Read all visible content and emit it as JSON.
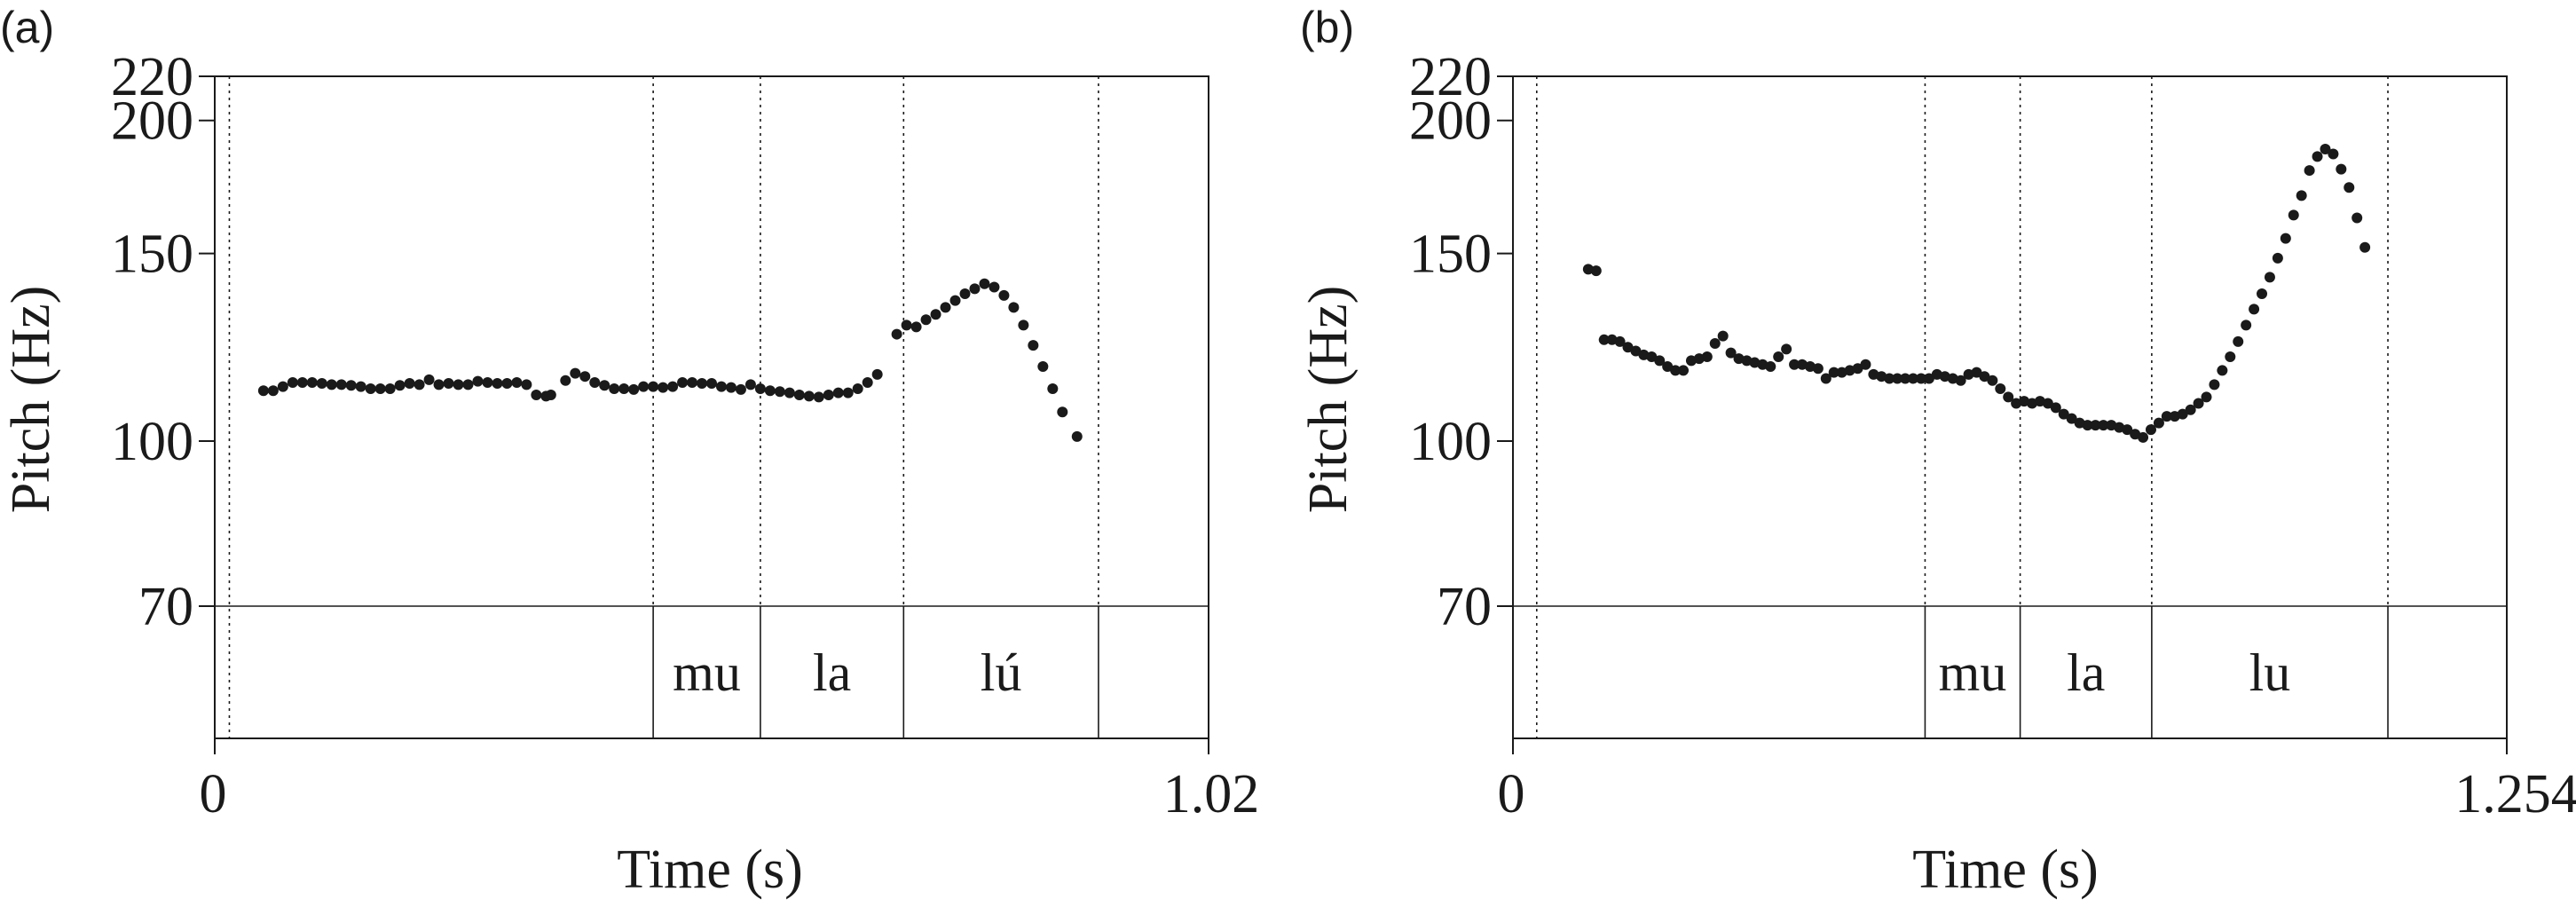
{
  "chart_data": [
    {
      "type": "scatter",
      "panel_label": "(a)",
      "xlabel": "Time (s)",
      "ylabel": "Pitch (Hz)",
      "xlim": [
        0,
        1.02
      ],
      "x_ticks": [
        "0",
        "1.02"
      ],
      "ylim": [
        70,
        220
      ],
      "y_scale": "log",
      "y_ticks": [
        220,
        200,
        150,
        100,
        70
      ],
      "grid": false,
      "boundaries": [
        0.015,
        0.45,
        0.56,
        0.707,
        0.907
      ],
      "syllables": [
        {
          "label": "mu",
          "start": 0.45,
          "end": 0.56
        },
        {
          "label": "la",
          "start": 0.56,
          "end": 0.707
        },
        {
          "label": "lú",
          "start": 0.707,
          "end": 0.907
        }
      ],
      "points": [
        [
          0.05,
          111.5
        ],
        [
          0.06,
          111.5
        ],
        [
          0.07,
          112.5
        ],
        [
          0.08,
          113.5
        ],
        [
          0.09,
          113.5
        ],
        [
          0.1,
          113.5
        ],
        [
          0.11,
          113.3
        ],
        [
          0.12,
          113
        ],
        [
          0.13,
          113
        ],
        [
          0.14,
          112.8
        ],
        [
          0.15,
          112.5
        ],
        [
          0.16,
          112
        ],
        [
          0.17,
          112
        ],
        [
          0.18,
          112
        ],
        [
          0.19,
          112.8
        ],
        [
          0.2,
          113.3
        ],
        [
          0.21,
          113
        ],
        [
          0.22,
          114.2
        ],
        [
          0.23,
          113
        ],
        [
          0.24,
          113.3
        ],
        [
          0.25,
          113
        ],
        [
          0.26,
          113
        ],
        [
          0.27,
          113.8
        ],
        [
          0.28,
          113.5
        ],
        [
          0.29,
          113.3
        ],
        [
          0.3,
          113.3
        ],
        [
          0.31,
          113.5
        ],
        [
          0.32,
          113
        ],
        [
          0.33,
          110.5
        ],
        [
          0.34,
          110.2
        ],
        [
          0.345,
          110.5
        ],
        [
          0.36,
          114
        ],
        [
          0.37,
          115.8
        ],
        [
          0.38,
          115
        ],
        [
          0.39,
          113.5
        ],
        [
          0.4,
          112.8
        ],
        [
          0.41,
          112
        ],
        [
          0.42,
          112
        ],
        [
          0.43,
          111.8
        ],
        [
          0.44,
          112.5
        ],
        [
          0.45,
          112.5
        ],
        [
          0.46,
          112.3
        ],
        [
          0.47,
          112.5
        ],
        [
          0.48,
          113.5
        ],
        [
          0.49,
          113.5
        ],
        [
          0.5,
          113.3
        ],
        [
          0.51,
          113.3
        ],
        [
          0.52,
          112.5
        ],
        [
          0.53,
          112.3
        ],
        [
          0.54,
          111.8
        ],
        [
          0.55,
          113
        ],
        [
          0.56,
          112
        ],
        [
          0.57,
          111.5
        ],
        [
          0.58,
          111.3
        ],
        [
          0.59,
          111
        ],
        [
          0.6,
          110.5
        ],
        [
          0.61,
          110.2
        ],
        [
          0.62,
          110
        ],
        [
          0.63,
          110.5
        ],
        [
          0.64,
          111
        ],
        [
          0.65,
          111
        ],
        [
          0.66,
          112
        ],
        [
          0.67,
          113.5
        ],
        [
          0.68,
          115.5
        ],
        [
          0.7,
          126
        ],
        [
          0.71,
          128.5
        ],
        [
          0.72,
          128
        ],
        [
          0.73,
          130
        ],
        [
          0.74,
          131.5
        ],
        [
          0.75,
          133.5
        ],
        [
          0.76,
          135.5
        ],
        [
          0.77,
          137.5
        ],
        [
          0.78,
          139
        ],
        [
          0.79,
          140.5
        ],
        [
          0.8,
          139.5
        ],
        [
          0.81,
          137
        ],
        [
          0.82,
          133.5
        ],
        [
          0.83,
          128.5
        ],
        [
          0.84,
          123
        ],
        [
          0.85,
          117.5
        ],
        [
          0.86,
          112
        ],
        [
          0.87,
          106.5
        ],
        [
          0.885,
          101
        ]
      ]
    },
    {
      "type": "scatter",
      "panel_label": "(b)",
      "xlabel": "Time (s)",
      "ylabel": "Pitch (Hz)",
      "xlim": [
        0,
        1.254
      ],
      "x_ticks": [
        "0",
        "1.254"
      ],
      "ylim": [
        70,
        220
      ],
      "y_scale": "log",
      "y_ticks": [
        220,
        200,
        150,
        100,
        70
      ],
      "grid": false,
      "boundaries": [
        0.03,
        0.52,
        0.64,
        0.806,
        1.104
      ],
      "syllables": [
        {
          "label": "mu",
          "start": 0.52,
          "end": 0.64
        },
        {
          "label": "la",
          "start": 0.64,
          "end": 0.806
        },
        {
          "label": "lu",
          "start": 0.806,
          "end": 1.104
        }
      ],
      "points": [
        [
          0.095,
          145
        ],
        [
          0.105,
          144.5
        ],
        [
          0.115,
          124.5
        ],
        [
          0.125,
          124.5
        ],
        [
          0.135,
          124
        ],
        [
          0.145,
          122.5
        ],
        [
          0.155,
          121.5
        ],
        [
          0.165,
          120.5
        ],
        [
          0.175,
          120
        ],
        [
          0.185,
          119
        ],
        [
          0.195,
          117.5
        ],
        [
          0.205,
          116.5
        ],
        [
          0.215,
          116.5
        ],
        [
          0.225,
          119
        ],
        [
          0.235,
          119.5
        ],
        [
          0.245,
          120
        ],
        [
          0.255,
          123.5
        ],
        [
          0.265,
          125.5
        ],
        [
          0.275,
          121
        ],
        [
          0.285,
          119.5
        ],
        [
          0.295,
          119
        ],
        [
          0.305,
          118.5
        ],
        [
          0.315,
          118
        ],
        [
          0.325,
          117.5
        ],
        [
          0.335,
          120
        ],
        [
          0.345,
          122
        ],
        [
          0.355,
          118
        ],
        [
          0.365,
          118
        ],
        [
          0.375,
          117.5
        ],
        [
          0.385,
          117
        ],
        [
          0.395,
          114.5
        ],
        [
          0.405,
          116
        ],
        [
          0.415,
          116
        ],
        [
          0.425,
          116.5
        ],
        [
          0.435,
          117
        ],
        [
          0.445,
          118
        ],
        [
          0.455,
          115.5
        ],
        [
          0.465,
          115
        ],
        [
          0.475,
          114.5
        ],
        [
          0.485,
          114.5
        ],
        [
          0.495,
          114.5
        ],
        [
          0.505,
          114.5
        ],
        [
          0.515,
          114.5
        ],
        [
          0.525,
          114.5
        ],
        [
          0.535,
          115.5
        ],
        [
          0.545,
          115
        ],
        [
          0.555,
          114.5
        ],
        [
          0.565,
          114
        ],
        [
          0.575,
          115.5
        ],
        [
          0.585,
          116
        ],
        [
          0.595,
          115
        ],
        [
          0.605,
          114
        ],
        [
          0.615,
          112
        ],
        [
          0.625,
          110
        ],
        [
          0.635,
          108.5
        ],
        [
          0.645,
          109
        ],
        [
          0.655,
          108.5
        ],
        [
          0.665,
          109
        ],
        [
          0.675,
          108.5
        ],
        [
          0.685,
          107.5
        ],
        [
          0.695,
          106
        ],
        [
          0.705,
          105
        ],
        [
          0.715,
          104
        ],
        [
          0.725,
          103.5
        ],
        [
          0.735,
          103.5
        ],
        [
          0.745,
          103.5
        ],
        [
          0.755,
          103.5
        ],
        [
          0.765,
          103
        ],
        [
          0.775,
          102.5
        ],
        [
          0.785,
          101.5
        ],
        [
          0.795,
          100.8
        ],
        [
          0.805,
          102.5
        ],
        [
          0.815,
          104
        ],
        [
          0.825,
          105.5
        ],
        [
          0.835,
          105.5
        ],
        [
          0.845,
          106
        ],
        [
          0.855,
          107
        ],
        [
          0.865,
          108.5
        ],
        [
          0.875,
          110
        ],
        [
          0.885,
          113
        ],
        [
          0.895,
          116.5
        ],
        [
          0.905,
          120
        ],
        [
          0.915,
          124
        ],
        [
          0.925,
          128.5
        ],
        [
          0.935,
          133
        ],
        [
          0.945,
          137.5
        ],
        [
          0.955,
          142.5
        ],
        [
          0.965,
          148.5
        ],
        [
          0.975,
          155
        ],
        [
          0.985,
          163
        ],
        [
          0.995,
          170
        ],
        [
          1.005,
          179.5
        ],
        [
          1.015,
          185
        ],
        [
          1.025,
          188
        ],
        [
          1.035,
          186
        ],
        [
          1.045,
          180
        ],
        [
          1.055,
          173
        ],
        [
          1.065,
          162
        ],
        [
          1.075,
          152
        ]
      ]
    }
  ]
}
